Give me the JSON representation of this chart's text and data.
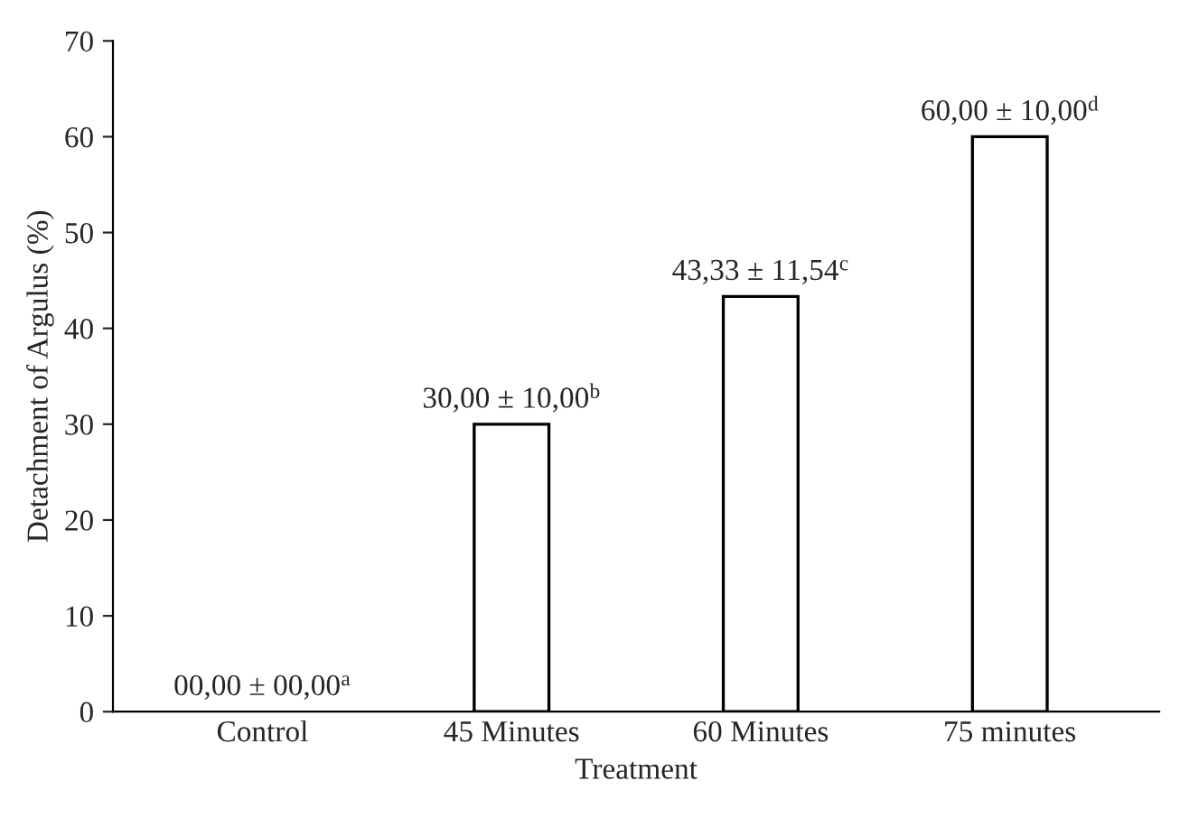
{
  "chart_data": {
    "type": "bar",
    "xlabel": "Treatment",
    "ylabel": "Detachment of Argulus (%)",
    "categories": [
      "Control",
      "45 Minutes",
      "60 Minutes",
      "75 minutes"
    ],
    "values": [
      0,
      30,
      43.33,
      60
    ],
    "value_labels": [
      "00,00 ± 00,00$^{a}$",
      "30,00 ± 10,00$^{b}$",
      "43,33 ± 11,54$^{c}$",
      "60,00 ± 10,00$^{d}$"
    ],
    "color": "#ffffff",
    "ylim": [
      0,
      70
    ],
    "yticks": [
      0,
      10,
      20,
      30,
      40,
      50,
      60,
      70
    ],
    "grid": false,
    "legend": false
  }
}
